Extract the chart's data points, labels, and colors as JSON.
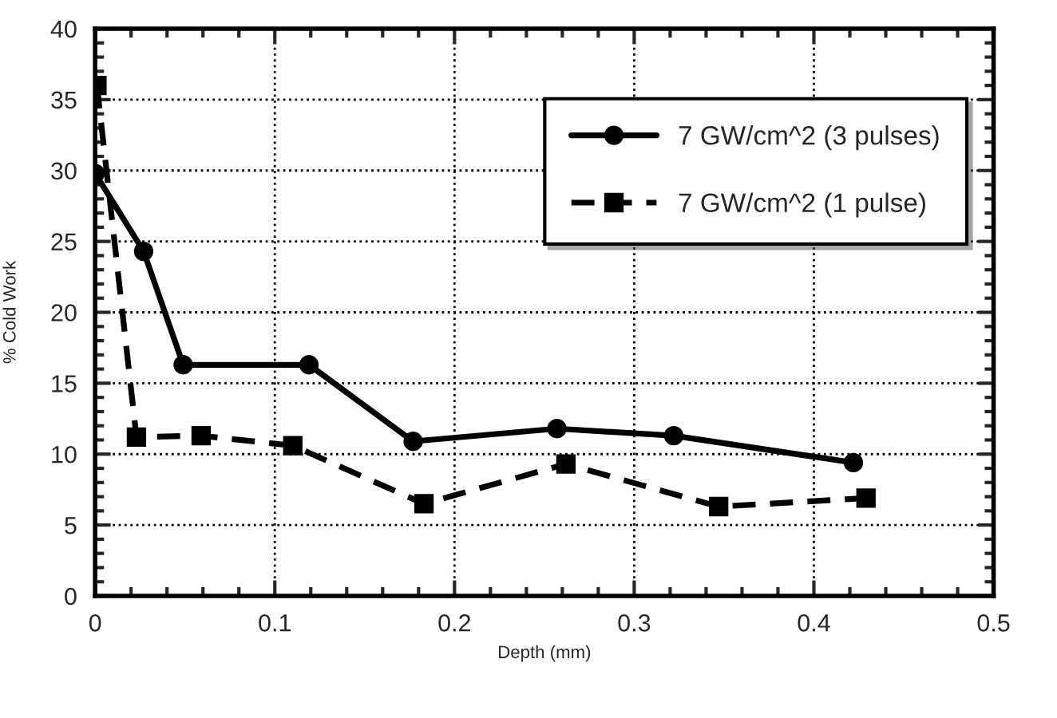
{
  "chart_data": {
    "type": "line",
    "xlabel": "Depth (mm)",
    "ylabel": "% Cold Work",
    "xlim": [
      0,
      0.5
    ],
    "xticks": [
      0,
      0.1,
      0.2,
      0.3,
      0.4,
      0.5
    ],
    "ylim": [
      0,
      40
    ],
    "yticks": [
      0,
      5,
      10,
      15,
      20,
      25,
      30,
      35,
      40
    ],
    "grid": true,
    "legend": "top right",
    "series": [
      {
        "name": "7 GW/cm^2 (3 pulses)",
        "color": "#000000",
        "marker": "circle",
        "line_style": "solid",
        "x": [
          0,
          0.027,
          0.049,
          0.119,
          0.177,
          0.257,
          0.322,
          0.422
        ],
        "values": [
          29.8,
          24.3,
          16.3,
          16.3,
          10.9,
          11.8,
          11.3,
          9.4
        ]
      },
      {
        "name": "7 GW/cm^2 (1 pulse)",
        "color": "#000000",
        "marker": "square",
        "line_style": "dashed",
        "x": [
          0.001,
          0.023,
          0.059,
          0.11,
          0.183,
          0.262,
          0.347,
          0.429
        ],
        "values": [
          36.0,
          11.2,
          11.3,
          10.6,
          6.5,
          9.3,
          6.3,
          6.9
        ]
      }
    ]
  }
}
